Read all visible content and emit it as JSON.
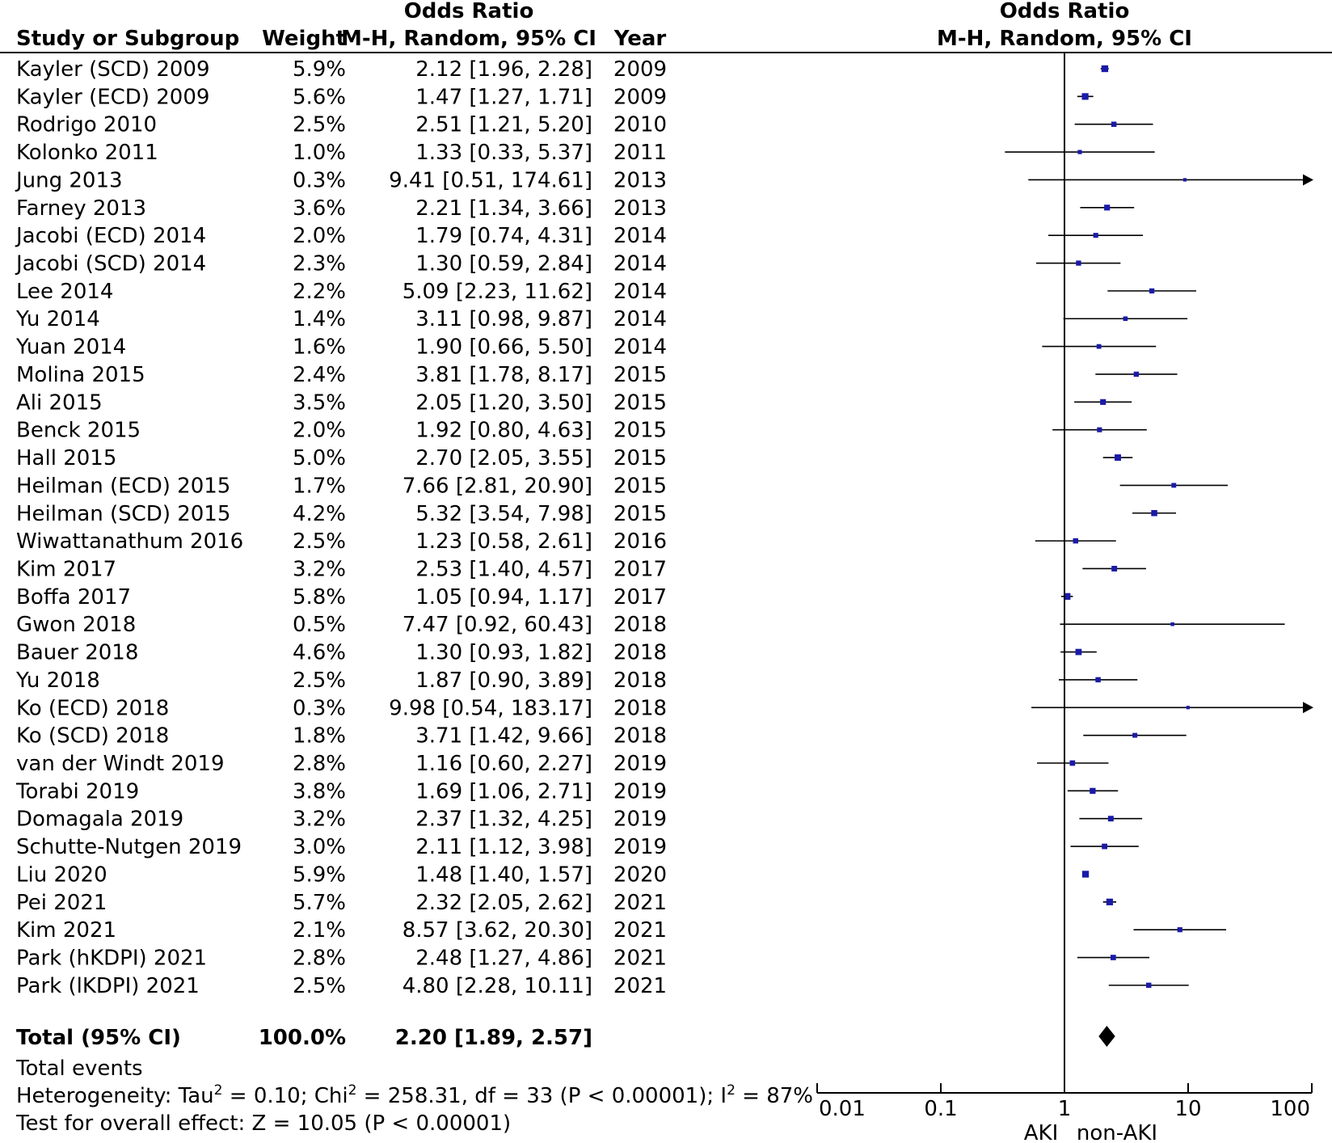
{
  "header": {
    "col_study": "Study or Subgroup",
    "col_weight": "Weight",
    "col_or_line1": "Odds Ratio",
    "col_or_line2": "M-H, Random, 95% CI",
    "col_year": "Year",
    "plot_title_line1": "Odds Ratio",
    "plot_title_line2": "M-H, Random, 95% CI"
  },
  "chart_data": {
    "type": "forest",
    "x_scale": "log",
    "x_ticks": [
      0.01,
      0.1,
      1,
      10,
      100
    ],
    "x_tick_labels": [
      "0.01",
      "0.1",
      "1",
      "10",
      "100"
    ],
    "xlim": [
      0.01,
      100
    ],
    "favours_left": "AKI",
    "favours_right": "non-AKI",
    "studies": [
      {
        "name": "Kayler (SCD) 2009",
        "weight": "5.9%",
        "ci_text": "2.12 [1.96, 2.28]",
        "year": "2009",
        "or": 2.12,
        "lo": 1.96,
        "hi": 2.28,
        "w": 5.9
      },
      {
        "name": "Kayler (ECD) 2009",
        "weight": "5.6%",
        "ci_text": "1.47 [1.27, 1.71]",
        "year": "2009",
        "or": 1.47,
        "lo": 1.27,
        "hi": 1.71,
        "w": 5.6
      },
      {
        "name": "Rodrigo 2010",
        "weight": "2.5%",
        "ci_text": "2.51 [1.21, 5.20]",
        "year": "2010",
        "or": 2.51,
        "lo": 1.21,
        "hi": 5.2,
        "w": 2.5
      },
      {
        "name": "Kolonko 2011",
        "weight": "1.0%",
        "ci_text": "1.33 [0.33, 5.37]",
        "year": "2011",
        "or": 1.33,
        "lo": 0.33,
        "hi": 5.37,
        "w": 1.0
      },
      {
        "name": "Jung 2013",
        "weight": "0.3%",
        "ci_text": "9.41 [0.51, 174.61]",
        "year": "2013",
        "or": 9.41,
        "lo": 0.51,
        "hi": 174.61,
        "w": 0.3
      },
      {
        "name": "Farney 2013",
        "weight": "3.6%",
        "ci_text": "2.21 [1.34, 3.66]",
        "year": "2013",
        "or": 2.21,
        "lo": 1.34,
        "hi": 3.66,
        "w": 3.6
      },
      {
        "name": "Jacobi (ECD) 2014",
        "weight": "2.0%",
        "ci_text": "1.79 [0.74, 4.31]",
        "year": "2014",
        "or": 1.79,
        "lo": 0.74,
        "hi": 4.31,
        "w": 2.0
      },
      {
        "name": "Jacobi (SCD) 2014",
        "weight": "2.3%",
        "ci_text": "1.30 [0.59, 2.84]",
        "year": "2014",
        "or": 1.3,
        "lo": 0.59,
        "hi": 2.84,
        "w": 2.3
      },
      {
        "name": "Lee 2014",
        "weight": "2.2%",
        "ci_text": "5.09 [2.23, 11.62]",
        "year": "2014",
        "or": 5.09,
        "lo": 2.23,
        "hi": 11.62,
        "w": 2.2
      },
      {
        "name": "Yu 2014",
        "weight": "1.4%",
        "ci_text": "3.11 [0.98, 9.87]",
        "year": "2014",
        "or": 3.11,
        "lo": 0.98,
        "hi": 9.87,
        "w": 1.4
      },
      {
        "name": "Yuan 2014",
        "weight": "1.6%",
        "ci_text": "1.90 [0.66, 5.50]",
        "year": "2014",
        "or": 1.9,
        "lo": 0.66,
        "hi": 5.5,
        "w": 1.6
      },
      {
        "name": "Molina 2015",
        "weight": "2.4%",
        "ci_text": "3.81 [1.78, 8.17]",
        "year": "2015",
        "or": 3.81,
        "lo": 1.78,
        "hi": 8.17,
        "w": 2.4
      },
      {
        "name": "Ali 2015",
        "weight": "3.5%",
        "ci_text": "2.05 [1.20, 3.50]",
        "year": "2015",
        "or": 2.05,
        "lo": 1.2,
        "hi": 3.5,
        "w": 3.5
      },
      {
        "name": "Benck 2015",
        "weight": "2.0%",
        "ci_text": "1.92 [0.80, 4.63]",
        "year": "2015",
        "or": 1.92,
        "lo": 0.8,
        "hi": 4.63,
        "w": 2.0
      },
      {
        "name": "Hall 2015",
        "weight": "5.0%",
        "ci_text": "2.70 [2.05, 3.55]",
        "year": "2015",
        "or": 2.7,
        "lo": 2.05,
        "hi": 3.55,
        "w": 5.0
      },
      {
        "name": "Heilman (ECD) 2015",
        "weight": "1.7%",
        "ci_text": "7.66 [2.81, 20.90]",
        "year": "2015",
        "or": 7.66,
        "lo": 2.81,
        "hi": 20.9,
        "w": 1.7
      },
      {
        "name": "Heilman (SCD) 2015",
        "weight": "4.2%",
        "ci_text": "5.32 [3.54, 7.98]",
        "year": "2015",
        "or": 5.32,
        "lo": 3.54,
        "hi": 7.98,
        "w": 4.2
      },
      {
        "name": "Wiwattanathum 2016",
        "weight": "2.5%",
        "ci_text": "1.23 [0.58, 2.61]",
        "year": "2016",
        "or": 1.23,
        "lo": 0.58,
        "hi": 2.61,
        "w": 2.5
      },
      {
        "name": "Kim 2017",
        "weight": "3.2%",
        "ci_text": "2.53 [1.40, 4.57]",
        "year": "2017",
        "or": 2.53,
        "lo": 1.4,
        "hi": 4.57,
        "w": 3.2
      },
      {
        "name": "Boffa 2017",
        "weight": "5.8%",
        "ci_text": "1.05 [0.94, 1.17]",
        "year": "2017",
        "or": 1.05,
        "lo": 0.94,
        "hi": 1.17,
        "w": 5.8
      },
      {
        "name": "Gwon 2018",
        "weight": "0.5%",
        "ci_text": "7.47 [0.92, 60.43]",
        "year": "2018",
        "or": 7.47,
        "lo": 0.92,
        "hi": 60.43,
        "w": 0.5
      },
      {
        "name": "Bauer 2018",
        "weight": "4.6%",
        "ci_text": "1.30 [0.93, 1.82]",
        "year": "2018",
        "or": 1.3,
        "lo": 0.93,
        "hi": 1.82,
        "w": 4.6
      },
      {
        "name": "Yu 2018",
        "weight": "2.5%",
        "ci_text": "1.87 [0.90, 3.89]",
        "year": "2018",
        "or": 1.87,
        "lo": 0.9,
        "hi": 3.89,
        "w": 2.5
      },
      {
        "name": "Ko (ECD) 2018",
        "weight": "0.3%",
        "ci_text": "9.98 [0.54, 183.17]",
        "year": "2018",
        "or": 9.98,
        "lo": 0.54,
        "hi": 183.17,
        "w": 0.3
      },
      {
        "name": "Ko (SCD) 2018",
        "weight": "1.8%",
        "ci_text": "3.71 [1.42, 9.66]",
        "year": "2018",
        "or": 3.71,
        "lo": 1.42,
        "hi": 9.66,
        "w": 1.8
      },
      {
        "name": "van der Windt 2019",
        "weight": "2.8%",
        "ci_text": "1.16 [0.60, 2.27]",
        "year": "2019",
        "or": 1.16,
        "lo": 0.6,
        "hi": 2.27,
        "w": 2.8
      },
      {
        "name": "Torabi 2019",
        "weight": "3.8%",
        "ci_text": "1.69 [1.06, 2.71]",
        "year": "2019",
        "or": 1.69,
        "lo": 1.06,
        "hi": 2.71,
        "w": 3.8
      },
      {
        "name": "Domagala 2019",
        "weight": "3.2%",
        "ci_text": "2.37 [1.32, 4.25]",
        "year": "2019",
        "or": 2.37,
        "lo": 1.32,
        "hi": 4.25,
        "w": 3.2
      },
      {
        "name": "Schutte-Nutgen 2019",
        "weight": "3.0%",
        "ci_text": "2.11 [1.12, 3.98]",
        "year": "2019",
        "or": 2.11,
        "lo": 1.12,
        "hi": 3.98,
        "w": 3.0
      },
      {
        "name": "Liu 2020",
        "weight": "5.9%",
        "ci_text": "1.48 [1.40, 1.57]",
        "year": "2020",
        "or": 1.48,
        "lo": 1.4,
        "hi": 1.57,
        "w": 5.9
      },
      {
        "name": "Pei 2021",
        "weight": "5.7%",
        "ci_text": "2.32 [2.05, 2.62]",
        "year": "2021",
        "or": 2.32,
        "lo": 2.05,
        "hi": 2.62,
        "w": 5.7
      },
      {
        "name": "Kim 2021",
        "weight": "2.1%",
        "ci_text": "8.57 [3.62, 20.30]",
        "year": "2021",
        "or": 8.57,
        "lo": 3.62,
        "hi": 20.3,
        "w": 2.1
      },
      {
        "name": "Park (hKDPI) 2021",
        "weight": "2.8%",
        "ci_text": "2.48 [1.27, 4.86]",
        "year": "2021",
        "or": 2.48,
        "lo": 1.27,
        "hi": 4.86,
        "w": 2.8
      },
      {
        "name": "Park (lKDPI) 2021",
        "weight": "2.5%",
        "ci_text": "4.80 [2.28, 10.11]",
        "year": "2021",
        "or": 4.8,
        "lo": 2.28,
        "hi": 10.11,
        "w": 2.5
      }
    ],
    "total": {
      "label": "Total (95% CI)",
      "weight": "100.0%",
      "ci_text": "2.20 [1.89, 2.57]",
      "or": 2.2,
      "lo": 1.89,
      "hi": 2.57
    },
    "colors": {
      "point": "#1a1aa8",
      "line": "#000000",
      "diamond": "#000000"
    }
  },
  "footer": {
    "total_events": "Total events",
    "heterogeneity_a": "Heterogeneity: Tau",
    "heterogeneity_b": " = 0.10; Chi",
    "heterogeneity_c": " = 258.31, df = 33 (P < 0.00001); I",
    "heterogeneity_d": " = 87%",
    "superscript": "2",
    "overall_effect": "Test for overall effect: Z = 10.05 (P < 0.00001)"
  }
}
